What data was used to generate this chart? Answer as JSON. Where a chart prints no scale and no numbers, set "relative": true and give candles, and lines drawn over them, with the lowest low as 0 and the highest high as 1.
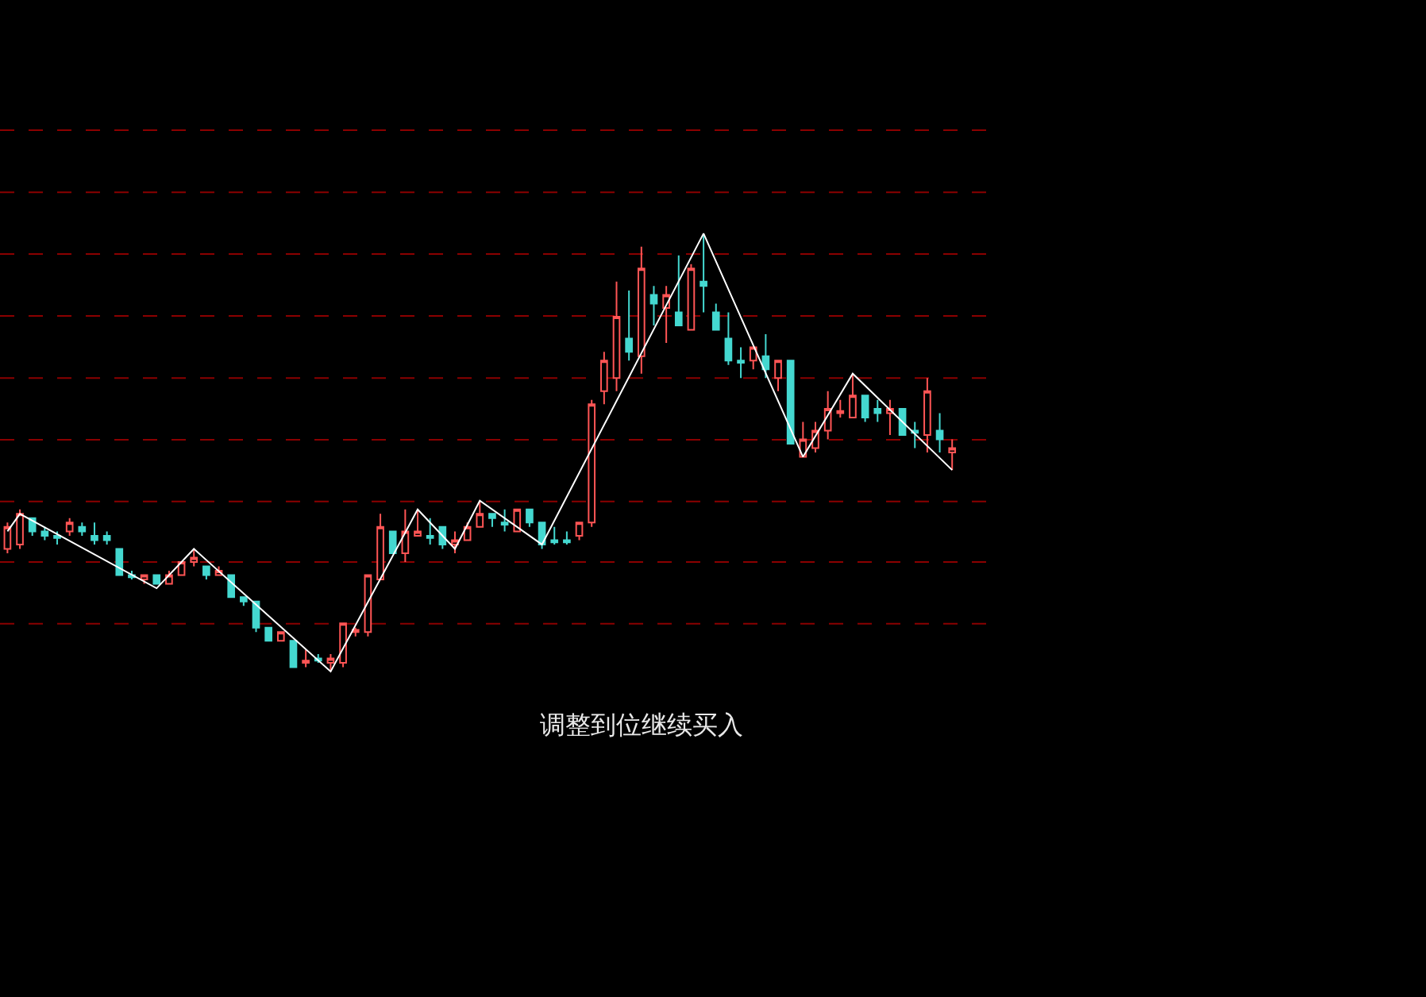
{
  "chart_data": {
    "type": "candlestick",
    "relative": true,
    "legend": false,
    "ref_lines": [
      {
        "axis": "y",
        "value": 1.236,
        "color": "#8b0000",
        "line_style": "dashed"
      },
      {
        "axis": "y",
        "value": 1.094,
        "color": "#8b0000",
        "line_style": "dashed"
      },
      {
        "axis": "y",
        "value": 0.953,
        "color": "#8b0000",
        "line_style": "dashed"
      },
      {
        "axis": "y",
        "value": 0.812,
        "color": "#8b0000",
        "line_style": "dashed"
      },
      {
        "axis": "y",
        "value": 0.67,
        "color": "#8b0000",
        "line_style": "dashed"
      },
      {
        "axis": "y",
        "value": 0.529,
        "color": "#8b0000",
        "line_style": "dashed"
      },
      {
        "axis": "y",
        "value": 0.388,
        "color": "#8b0000",
        "line_style": "dashed"
      },
      {
        "axis": "y",
        "value": 0.25,
        "color": "#8b0000",
        "line_style": "dashed"
      },
      {
        "axis": "y",
        "value": 0.109,
        "color": "#8b0000",
        "line_style": "dashed"
      }
    ],
    "annotations": [
      "调整到位继续买入"
    ],
    "categories": [
      null,
      null,
      null,
      null,
      null,
      null,
      null,
      null,
      null,
      null,
      null,
      null,
      null,
      null,
      null,
      null,
      null,
      null,
      null,
      null,
      null,
      null,
      null,
      null,
      null,
      null,
      null,
      null,
      null,
      null,
      null,
      null,
      null,
      null,
      null,
      null,
      null,
      null,
      null,
      null,
      null,
      null,
      null,
      null,
      null,
      null,
      null,
      null,
      null,
      null,
      null,
      null,
      null,
      null,
      null,
      null,
      null,
      null,
      null,
      null,
      null,
      null,
      null,
      null,
      null,
      null,
      null,
      null,
      null,
      null,
      null,
      null,
      null,
      null,
      null,
      null,
      null
    ],
    "ohlc": [
      [
        0.28,
        0.34,
        0.27,
        0.33
      ],
      [
        0.29,
        0.37,
        0.28,
        0.36
      ],
      [
        0.35,
        0.35,
        0.31,
        0.32
      ],
      [
        0.32,
        0.33,
        0.3,
        0.31
      ],
      [
        0.31,
        0.32,
        0.29,
        0.305
      ],
      [
        0.32,
        0.35,
        0.31,
        0.34
      ],
      [
        0.33,
        0.34,
        0.31,
        0.32
      ],
      [
        0.31,
        0.34,
        0.29,
        0.3
      ],
      [
        0.31,
        0.32,
        0.29,
        0.3
      ],
      [
        0.28,
        0.28,
        0.22,
        0.22
      ],
      [
        0.22,
        0.23,
        0.21,
        0.215
      ],
      [
        0.21,
        0.22,
        0.2,
        0.22
      ],
      [
        0.22,
        0.22,
        0.2,
        0.2
      ],
      [
        0.2,
        0.23,
        0.2,
        0.22
      ],
      [
        0.22,
        0.25,
        0.22,
        0.25
      ],
      [
        0.25,
        0.28,
        0.24,
        0.26
      ],
      [
        0.24,
        0.24,
        0.21,
        0.22
      ],
      [
        0.22,
        0.24,
        0.22,
        0.23
      ],
      [
        0.22,
        0.22,
        0.17,
        0.17
      ],
      [
        0.17,
        0.17,
        0.15,
        0.16
      ],
      [
        0.16,
        0.16,
        0.09,
        0.1
      ],
      [
        0.1,
        0.1,
        0.07,
        0.07
      ],
      [
        0.07,
        0.09,
        0.07,
        0.09
      ],
      [
        0.07,
        0.07,
        0.01,
        0.01
      ],
      [
        0.02,
        0.05,
        0.01,
        0.025
      ],
      [
        0.03,
        0.04,
        0.02,
        0.025
      ],
      [
        0.02,
        0.04,
        0.0,
        0.03
      ],
      [
        0.02,
        0.11,
        0.01,
        0.11
      ],
      [
        0.09,
        0.1,
        0.08,
        0.095
      ],
      [
        0.09,
        0.22,
        0.08,
        0.22
      ],
      [
        0.21,
        0.36,
        0.21,
        0.33
      ],
      [
        0.32,
        0.32,
        0.27,
        0.27
      ],
      [
        0.27,
        0.37,
        0.25,
        0.32
      ],
      [
        0.31,
        0.37,
        0.31,
        0.32
      ],
      [
        0.31,
        0.35,
        0.29,
        0.305
      ],
      [
        0.33,
        0.33,
        0.28,
        0.29
      ],
      [
        0.29,
        0.32,
        0.27,
        0.3
      ],
      [
        0.3,
        0.34,
        0.3,
        0.33
      ],
      [
        0.33,
        0.39,
        0.33,
        0.36
      ],
      [
        0.36,
        0.36,
        0.33,
        0.35
      ],
      [
        0.34,
        0.37,
        0.32,
        0.335
      ],
      [
        0.32,
        0.37,
        0.32,
        0.37
      ],
      [
        0.37,
        0.37,
        0.33,
        0.34
      ],
      [
        0.34,
        0.34,
        0.28,
        0.29
      ],
      [
        0.3,
        0.33,
        0.29,
        0.295
      ],
      [
        0.3,
        0.32,
        0.29,
        0.295
      ],
      [
        0.31,
        0.34,
        0.3,
        0.34
      ],
      [
        0.34,
        0.62,
        0.33,
        0.61
      ],
      [
        0.64,
        0.73,
        0.61,
        0.71
      ],
      [
        0.67,
        0.89,
        0.64,
        0.81
      ],
      [
        0.76,
        0.87,
        0.71,
        0.73
      ],
      [
        0.72,
        0.97,
        0.68,
        0.92
      ],
      [
        0.86,
        0.88,
        0.79,
        0.84
      ],
      [
        0.83,
        0.88,
        0.75,
        0.86
      ],
      [
        0.82,
        0.95,
        0.79,
        0.79
      ],
      [
        0.78,
        0.93,
        0.78,
        0.92
      ],
      [
        0.89,
        1.0,
        0.82,
        0.88
      ],
      [
        0.82,
        0.84,
        0.78,
        0.78
      ],
      [
        0.76,
        0.82,
        0.7,
        0.71
      ],
      [
        0.71,
        0.74,
        0.67,
        0.705
      ],
      [
        0.71,
        0.74,
        0.69,
        0.74
      ],
      [
        0.72,
        0.77,
        0.67,
        0.69
      ],
      [
        0.67,
        0.71,
        0.64,
        0.71
      ],
      [
        0.71,
        0.71,
        0.52,
        0.52
      ],
      [
        0.49,
        0.57,
        0.49,
        0.53
      ],
      [
        0.51,
        0.57,
        0.5,
        0.55
      ],
      [
        0.55,
        0.64,
        0.53,
        0.6
      ],
      [
        0.59,
        0.62,
        0.58,
        0.595
      ],
      [
        0.58,
        0.68,
        0.58,
        0.63
      ],
      [
        0.63,
        0.63,
        0.57,
        0.58
      ],
      [
        0.6,
        0.62,
        0.57,
        0.59
      ],
      [
        0.59,
        0.62,
        0.54,
        0.6
      ],
      [
        0.6,
        0.6,
        0.54,
        0.54
      ],
      [
        0.55,
        0.57,
        0.51,
        0.545
      ],
      [
        0.54,
        0.67,
        0.5,
        0.64
      ],
      [
        0.55,
        0.59,
        0.5,
        0.53
      ],
      [
        0.5,
        0.53,
        0.46,
        0.51
      ]
    ],
    "series": [
      {
        "type": "line",
        "color": "#ffffff",
        "marker": "none",
        "line_style": "solid",
        "values": [
          0.32,
          0.36,
          null,
          null,
          null,
          null,
          null,
          null,
          null,
          null,
          null,
          null,
          0.19,
          null,
          null,
          0.28,
          null,
          null,
          null,
          null,
          null,
          null,
          null,
          null,
          null,
          null,
          0.0,
          null,
          null,
          null,
          null,
          null,
          null,
          0.37,
          null,
          null,
          0.28,
          null,
          0.39,
          null,
          null,
          null,
          null,
          0.29,
          null,
          null,
          null,
          null,
          null,
          null,
          null,
          null,
          null,
          null,
          null,
          null,
          1.0,
          null,
          null,
          null,
          null,
          null,
          null,
          null,
          0.49,
          null,
          null,
          null,
          0.68,
          null,
          null,
          null,
          null,
          null,
          null,
          null,
          0.46
        ]
      }
    ]
  }
}
